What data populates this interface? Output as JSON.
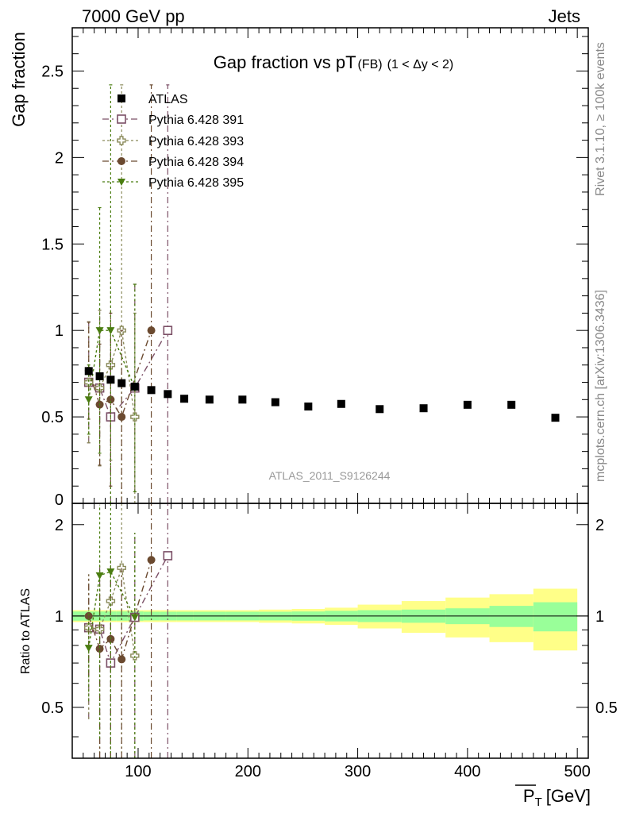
{
  "header": {
    "left": "7000 GeV pp",
    "right": "Jets"
  },
  "side_text": {
    "rivet": "Rivet 3.1.10, ≥ 100k events",
    "mcplots": "mcplots.cern.ch [arXiv:1306.3436]"
  },
  "chart_data": {
    "type": "scatter",
    "title": "Gap fraction vs pT",
    "title_sub": "(FB)",
    "title_cond": "(1 < Δy < 2)",
    "watermark": "ATLAS_2011_S9126244",
    "xlabel": "P",
    "xlabel_sub": "T",
    "xlabel_unit": "[GeV]",
    "ylabel": "Gap fraction",
    "ratio_ylabel": "Ratio to ATLAS",
    "xlim": [
      40,
      510
    ],
    "ylim": [
      0,
      2.75
    ],
    "ratio_ylim": [
      0.34,
      2.35
    ],
    "x_ticks": [
      100,
      200,
      300,
      400,
      500
    ],
    "y_ticks": [
      0.5,
      1,
      1.5,
      2,
      2.5
    ],
    "y_tick_labels": [
      "0.5",
      "1",
      "1.5",
      "2",
      "2.5"
    ],
    "y_zero_label": "0",
    "ratio_y_ticks": [
      0.5,
      1,
      2
    ],
    "ratio_y_tick_labels": [
      "0.5",
      "1",
      "2"
    ],
    "legend_position": "top-left",
    "colors": {
      "atlas": "#000000",
      "s391": "#7b4f66",
      "s393": "#8a8a5a",
      "s394": "#6b4a30",
      "s395": "#4a7d10",
      "band_inner": "#99ff99",
      "band_outer": "#ffff88"
    },
    "atlas": {
      "name": "ATLAS",
      "x": [
        55,
        65,
        75,
        85,
        97,
        112,
        127,
        142,
        165,
        195,
        225,
        255,
        285,
        320,
        360,
        400,
        440,
        480
      ],
      "y": [
        0.765,
        0.735,
        0.715,
        0.695,
        0.675,
        0.655,
        0.632,
        0.605,
        0.6,
        0.6,
        0.585,
        0.56,
        0.575,
        0.545,
        0.55,
        0.57,
        0.57,
        0.495
      ]
    },
    "ratio_band": {
      "x_edges": [
        40,
        60,
        70,
        80,
        90,
        105,
        120,
        135,
        150,
        180,
        210,
        240,
        270,
        300,
        340,
        380,
        420,
        460,
        500
      ],
      "inner": [
        0.035,
        0.035,
        0.035,
        0.035,
        0.035,
        0.033,
        0.033,
        0.033,
        0.033,
        0.033,
        0.033,
        0.035,
        0.04,
        0.045,
        0.05,
        0.06,
        0.08,
        0.11
      ],
      "outer": [
        0.045,
        0.045,
        0.045,
        0.045,
        0.045,
        0.045,
        0.045,
        0.045,
        0.045,
        0.045,
        0.05,
        0.055,
        0.065,
        0.09,
        0.12,
        0.15,
        0.18,
        0.23
      ]
    },
    "series": [
      {
        "name": "Pythia 6.428 391",
        "marker": "open-square",
        "dash": "8,4,2,4",
        "x": [
          55,
          65,
          75,
          97,
          127
        ],
        "y": [
          0.7,
          0.667,
          0.5,
          0.667,
          1.0
        ],
        "err": [
          0.35,
          0.45,
          0.5,
          0.6,
          1.42
        ],
        "ratio": [
          0.915,
          0.905,
          0.7,
          0.99,
          1.58
        ]
      },
      {
        "name": "Pythia 6.428 393",
        "marker": "open-cross",
        "dash": "3,3",
        "x": [
          55,
          65,
          75,
          85,
          97
        ],
        "y": [
          0.7,
          0.667,
          0.8,
          1.0,
          0.5
        ],
        "err": [
          0.35,
          0.45,
          0.55,
          1.42,
          0.6
        ],
        "ratio": [
          0.915,
          0.905,
          1.12,
          1.44,
          0.74
        ]
      },
      {
        "name": "Pythia 6.428 394",
        "marker": "filled-circle",
        "dash": "8,4,2,4",
        "x": [
          55,
          65,
          75,
          85,
          112
        ],
        "y": [
          0.767,
          0.571,
          0.6,
          0.5,
          1.0
        ],
        "err": [
          0.28,
          0.35,
          0.5,
          0.5,
          1.42
        ],
        "ratio": [
          1.0,
          0.78,
          0.84,
          0.72,
          1.53
        ]
      },
      {
        "name": "Pythia 6.428 395",
        "marker": "filled-triangle",
        "dash": "3,3",
        "x": [
          55,
          65,
          75,
          97
        ],
        "y": [
          0.6,
          1.0,
          1.0,
          0.667
        ],
        "err": [
          0.2,
          0.71,
          1.42,
          0.6
        ],
        "ratio": [
          0.785,
          1.36,
          1.4,
          0.99
        ]
      }
    ]
  }
}
